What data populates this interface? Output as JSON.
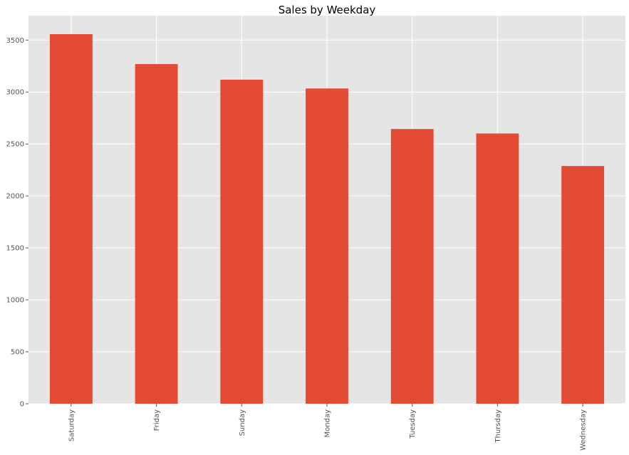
{
  "chart_data": {
    "type": "bar",
    "title": "Sales by Weekday",
    "xlabel": "",
    "ylabel": "",
    "categories": [
      "Saturday",
      "Friday",
      "Sunday",
      "Monday",
      "Tuesday",
      "Thursday",
      "Wednesday"
    ],
    "values": [
      3557,
      3269,
      3119,
      3034,
      2644,
      2601,
      2288
    ],
    "ylim": [
      0,
      3735
    ],
    "yticks": [
      0,
      500,
      1000,
      1500,
      2000,
      2500,
      3000,
      3500
    ],
    "grid": true,
    "legend": "none",
    "colors": {
      "bar": "#E24A33",
      "plot_background": "#E5E5E5",
      "grid": "#FFFFFF",
      "tick_label": "#555555"
    }
  }
}
